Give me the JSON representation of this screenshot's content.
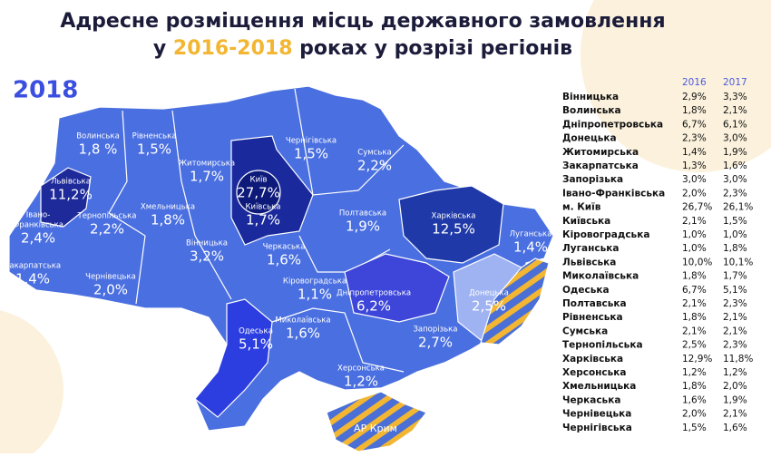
{
  "header": {
    "title_line1": "Адресне розміщення місць державного замовлення",
    "title_line2": [
      "у ",
      "2016-2018",
      " роках у розрізі регіонів"
    ]
  },
  "year": "2018",
  "map": {
    "regions": [
      {
        "name": [
          "Волинська"
        ],
        "value": "1,8 %"
      },
      {
        "name": [
          "Рівненська"
        ],
        "value": "1,5%"
      },
      {
        "name": [
          "Житомирська"
        ],
        "value": "1,7%"
      },
      {
        "name": [
          "Київ"
        ],
        "value": "27,7%"
      },
      {
        "name": [
          "Київська"
        ],
        "value": "1,7%"
      },
      {
        "name": [
          "Чернігівська"
        ],
        "value": "1,5%"
      },
      {
        "name": [
          "Сумська"
        ],
        "value": "2,2%"
      },
      {
        "name": [
          "Львівська"
        ],
        "value": "11,2%"
      },
      {
        "name": [
          "Тернопільська"
        ],
        "value": "2,2%"
      },
      {
        "name": [
          "Хмельницька"
        ],
        "value": "1,8%"
      },
      {
        "name": [
          "Полтавська"
        ],
        "value": "1,9%"
      },
      {
        "name": [
          "Харківська"
        ],
        "value": "12,5%"
      },
      {
        "name": [
          "Луганська"
        ],
        "value": "1,4%"
      },
      {
        "name": [
          "Івано-",
          "Франківська"
        ],
        "value": "2,4%"
      },
      {
        "name": [
          "Вінницька"
        ],
        "value": "3,2%"
      },
      {
        "name": [
          "Черкаська"
        ],
        "value": "1,6%"
      },
      {
        "name": [
          "Закарпатська"
        ],
        "value": "1,4%"
      },
      {
        "name": [
          "Чернівецька"
        ],
        "value": "2,0%"
      },
      {
        "name": [
          "Кіровоградська"
        ],
        "value": "1,1%"
      },
      {
        "name": [
          "Дніпропетровська"
        ],
        "value": "6,2%"
      },
      {
        "name": [
          "Донецька"
        ],
        "value": "2,5%"
      },
      {
        "name": [
          "Одеська"
        ],
        "value": "5,1%"
      },
      {
        "name": [
          "Миколаївська"
        ],
        "value": "1,6%"
      },
      {
        "name": [
          "Запорізька"
        ],
        "value": "2,7%"
      },
      {
        "name": [
          "Херсонська"
        ],
        "value": "1,2%"
      }
    ],
    "crimea": "АР Крим"
  },
  "table": {
    "columns": [
      "2016",
      "2017"
    ],
    "rows": [
      [
        "Вінницька",
        "2,9%",
        "3,3%"
      ],
      [
        "Волинська",
        "1,8%",
        "2,1%"
      ],
      [
        "Дніпропетровська",
        "6,7%",
        "6,1%"
      ],
      [
        "Донецька",
        "2,3%",
        "3,0%"
      ],
      [
        "Житомирська",
        "1,4%",
        "1,9%"
      ],
      [
        "Закарпатська",
        "1,3%",
        "1,6%"
      ],
      [
        "Запорізька",
        "3,0%",
        "3,0%"
      ],
      [
        "Івано-Франківська",
        "2,0%",
        "2,3%"
      ],
      [
        "м. Київ",
        "26,7%",
        "26,1%"
      ],
      [
        "Київська",
        "2,1%",
        "1,5%"
      ],
      [
        "Кіровоградська",
        "1,0%",
        "1,0%"
      ],
      [
        "Луганська",
        "1,0%",
        "1,8%"
      ],
      [
        "Львівська",
        "10,0%",
        "10,1%"
      ],
      [
        "Миколаївська",
        "1,8%",
        "1,7%"
      ],
      [
        "Одеська",
        "6,7%",
        "5,1%"
      ],
      [
        "Полтавська",
        "2,1%",
        "2,3%"
      ],
      [
        "Рівненська",
        "1,8%",
        "2,1%"
      ],
      [
        "Сумська",
        "2,1%",
        "2,1%"
      ],
      [
        "Тернопільська",
        "2,5%",
        "2,3%"
      ],
      [
        "Харківська",
        "12,9%",
        "11,8%"
      ],
      [
        "Херсонська",
        "1,2%",
        "1,2%"
      ],
      [
        "Хмельницька",
        "1,8%",
        "2,0%"
      ],
      [
        "Черкаська",
        "1,6%",
        "1,9%"
      ],
      [
        "Чернівецька",
        "2,0%",
        "2,1%"
      ],
      [
        "Чернігівська",
        "1,5%",
        "1,6%"
      ]
    ]
  }
}
